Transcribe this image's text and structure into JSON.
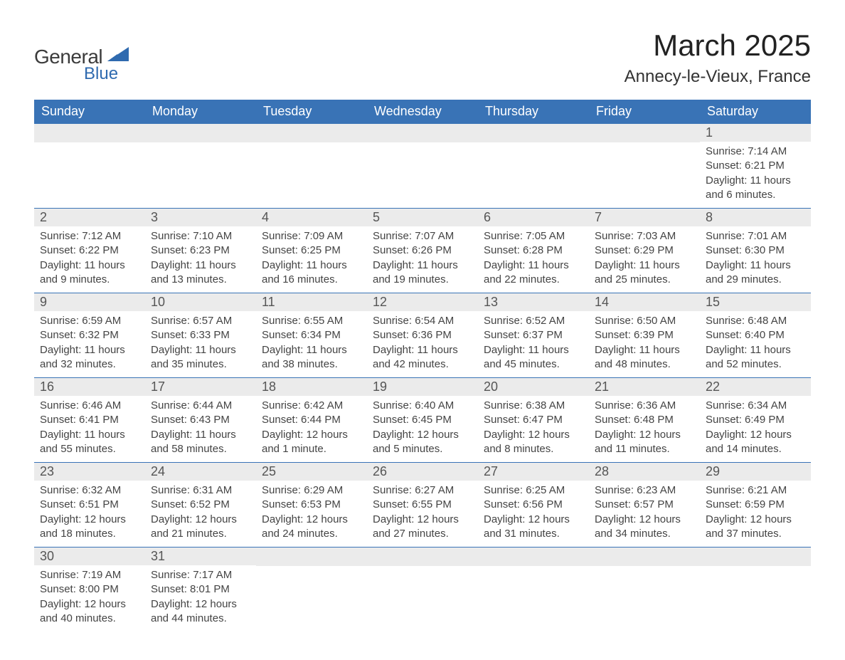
{
  "logo": {
    "word1": "General",
    "word2": "Blue"
  },
  "title": {
    "month": "March 2025",
    "location": "Annecy-le-Vieux, France"
  },
  "colors": {
    "header_bg": "#3973b6",
    "header_text": "#ffffff",
    "strip_bg": "#ebebeb",
    "row_border": "#3973b6",
    "logo_blue": "#2f6aaf"
  },
  "columns": [
    "Sunday",
    "Monday",
    "Tuesday",
    "Wednesday",
    "Thursday",
    "Friday",
    "Saturday"
  ],
  "weeks": [
    [
      {
        "blank": true
      },
      {
        "blank": true
      },
      {
        "blank": true
      },
      {
        "blank": true
      },
      {
        "blank": true
      },
      {
        "blank": true
      },
      {
        "day": "1",
        "sunrise": "Sunrise: 7:14 AM",
        "sunset": "Sunset: 6:21 PM",
        "daylight": "Daylight: 11 hours and 6 minutes."
      }
    ],
    [
      {
        "day": "2",
        "sunrise": "Sunrise: 7:12 AM",
        "sunset": "Sunset: 6:22 PM",
        "daylight": "Daylight: 11 hours and 9 minutes."
      },
      {
        "day": "3",
        "sunrise": "Sunrise: 7:10 AM",
        "sunset": "Sunset: 6:23 PM",
        "daylight": "Daylight: 11 hours and 13 minutes."
      },
      {
        "day": "4",
        "sunrise": "Sunrise: 7:09 AM",
        "sunset": "Sunset: 6:25 PM",
        "daylight": "Daylight: 11 hours and 16 minutes."
      },
      {
        "day": "5",
        "sunrise": "Sunrise: 7:07 AM",
        "sunset": "Sunset: 6:26 PM",
        "daylight": "Daylight: 11 hours and 19 minutes."
      },
      {
        "day": "6",
        "sunrise": "Sunrise: 7:05 AM",
        "sunset": "Sunset: 6:28 PM",
        "daylight": "Daylight: 11 hours and 22 minutes."
      },
      {
        "day": "7",
        "sunrise": "Sunrise: 7:03 AM",
        "sunset": "Sunset: 6:29 PM",
        "daylight": "Daylight: 11 hours and 25 minutes."
      },
      {
        "day": "8",
        "sunrise": "Sunrise: 7:01 AM",
        "sunset": "Sunset: 6:30 PM",
        "daylight": "Daylight: 11 hours and 29 minutes."
      }
    ],
    [
      {
        "day": "9",
        "sunrise": "Sunrise: 6:59 AM",
        "sunset": "Sunset: 6:32 PM",
        "daylight": "Daylight: 11 hours and 32 minutes."
      },
      {
        "day": "10",
        "sunrise": "Sunrise: 6:57 AM",
        "sunset": "Sunset: 6:33 PM",
        "daylight": "Daylight: 11 hours and 35 minutes."
      },
      {
        "day": "11",
        "sunrise": "Sunrise: 6:55 AM",
        "sunset": "Sunset: 6:34 PM",
        "daylight": "Daylight: 11 hours and 38 minutes."
      },
      {
        "day": "12",
        "sunrise": "Sunrise: 6:54 AM",
        "sunset": "Sunset: 6:36 PM",
        "daylight": "Daylight: 11 hours and 42 minutes."
      },
      {
        "day": "13",
        "sunrise": "Sunrise: 6:52 AM",
        "sunset": "Sunset: 6:37 PM",
        "daylight": "Daylight: 11 hours and 45 minutes."
      },
      {
        "day": "14",
        "sunrise": "Sunrise: 6:50 AM",
        "sunset": "Sunset: 6:39 PM",
        "daylight": "Daylight: 11 hours and 48 minutes."
      },
      {
        "day": "15",
        "sunrise": "Sunrise: 6:48 AM",
        "sunset": "Sunset: 6:40 PM",
        "daylight": "Daylight: 11 hours and 52 minutes."
      }
    ],
    [
      {
        "day": "16",
        "sunrise": "Sunrise: 6:46 AM",
        "sunset": "Sunset: 6:41 PM",
        "daylight": "Daylight: 11 hours and 55 minutes."
      },
      {
        "day": "17",
        "sunrise": "Sunrise: 6:44 AM",
        "sunset": "Sunset: 6:43 PM",
        "daylight": "Daylight: 11 hours and 58 minutes."
      },
      {
        "day": "18",
        "sunrise": "Sunrise: 6:42 AM",
        "sunset": "Sunset: 6:44 PM",
        "daylight": "Daylight: 12 hours and 1 minute."
      },
      {
        "day": "19",
        "sunrise": "Sunrise: 6:40 AM",
        "sunset": "Sunset: 6:45 PM",
        "daylight": "Daylight: 12 hours and 5 minutes."
      },
      {
        "day": "20",
        "sunrise": "Sunrise: 6:38 AM",
        "sunset": "Sunset: 6:47 PM",
        "daylight": "Daylight: 12 hours and 8 minutes."
      },
      {
        "day": "21",
        "sunrise": "Sunrise: 6:36 AM",
        "sunset": "Sunset: 6:48 PM",
        "daylight": "Daylight: 12 hours and 11 minutes."
      },
      {
        "day": "22",
        "sunrise": "Sunrise: 6:34 AM",
        "sunset": "Sunset: 6:49 PM",
        "daylight": "Daylight: 12 hours and 14 minutes."
      }
    ],
    [
      {
        "day": "23",
        "sunrise": "Sunrise: 6:32 AM",
        "sunset": "Sunset: 6:51 PM",
        "daylight": "Daylight: 12 hours and 18 minutes."
      },
      {
        "day": "24",
        "sunrise": "Sunrise: 6:31 AM",
        "sunset": "Sunset: 6:52 PM",
        "daylight": "Daylight: 12 hours and 21 minutes."
      },
      {
        "day": "25",
        "sunrise": "Sunrise: 6:29 AM",
        "sunset": "Sunset: 6:53 PM",
        "daylight": "Daylight: 12 hours and 24 minutes."
      },
      {
        "day": "26",
        "sunrise": "Sunrise: 6:27 AM",
        "sunset": "Sunset: 6:55 PM",
        "daylight": "Daylight: 12 hours and 27 minutes."
      },
      {
        "day": "27",
        "sunrise": "Sunrise: 6:25 AM",
        "sunset": "Sunset: 6:56 PM",
        "daylight": "Daylight: 12 hours and 31 minutes."
      },
      {
        "day": "28",
        "sunrise": "Sunrise: 6:23 AM",
        "sunset": "Sunset: 6:57 PM",
        "daylight": "Daylight: 12 hours and 34 minutes."
      },
      {
        "day": "29",
        "sunrise": "Sunrise: 6:21 AM",
        "sunset": "Sunset: 6:59 PM",
        "daylight": "Daylight: 12 hours and 37 minutes."
      }
    ],
    [
      {
        "day": "30",
        "sunrise": "Sunrise: 7:19 AM",
        "sunset": "Sunset: 8:00 PM",
        "daylight": "Daylight: 12 hours and 40 minutes."
      },
      {
        "day": "31",
        "sunrise": "Sunrise: 7:17 AM",
        "sunset": "Sunset: 8:01 PM",
        "daylight": "Daylight: 12 hours and 44 minutes."
      },
      {
        "blank": true
      },
      {
        "blank": true
      },
      {
        "blank": true
      },
      {
        "blank": true
      },
      {
        "blank": true
      }
    ]
  ]
}
